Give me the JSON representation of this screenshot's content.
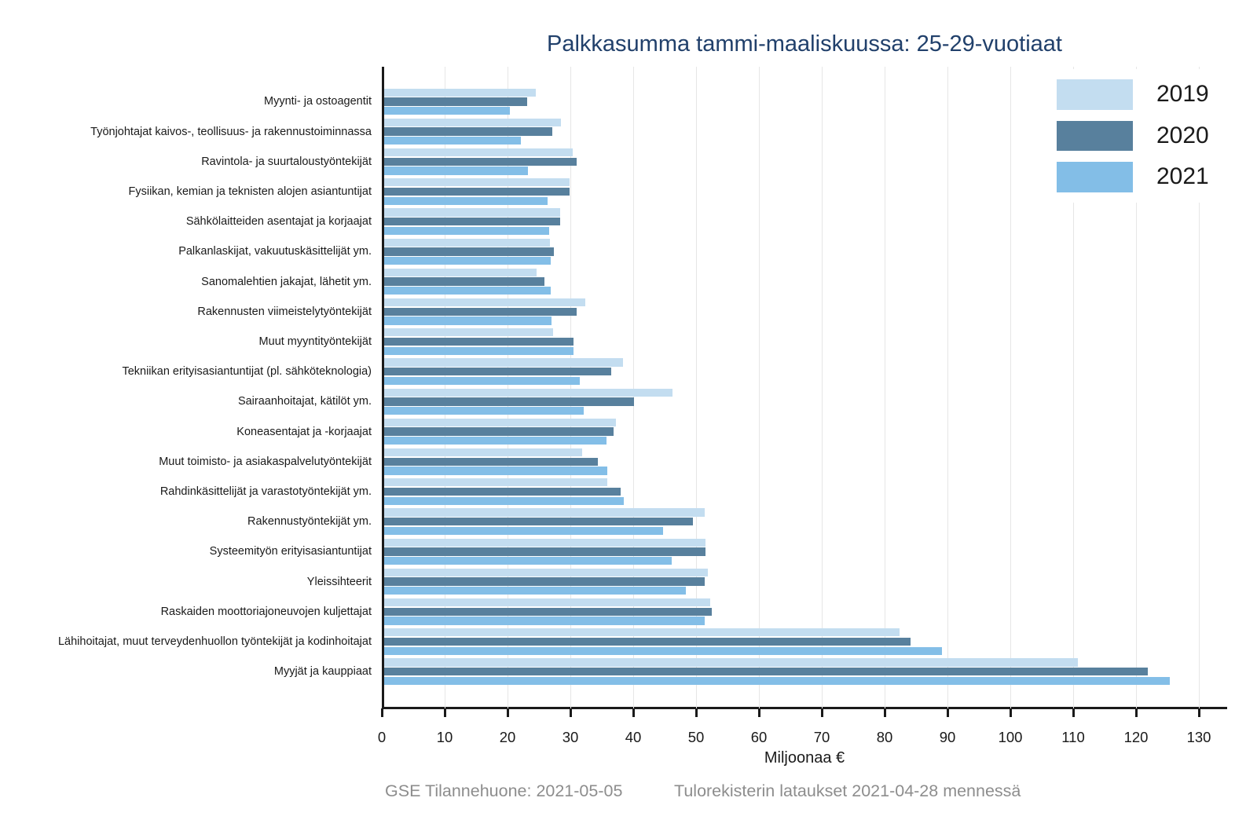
{
  "title": "Palkkasumma tammi-maaliskuussa: 25-29-vuotiaat",
  "footer": {
    "left": "GSE Tilannehuone: 2021-05-05",
    "right": "Tulorekisterin lataukset 2021-04-28 mennessä"
  },
  "colors": {
    "series_2019": "#c3ddf0",
    "series_2020": "#58809d",
    "series_2021": "#83bee7",
    "title_text": "#21406b",
    "axis": "#1a1a1a",
    "grid": "#e6e6e6",
    "footer_text": "#8d8d8d",
    "background": "#ffffff"
  },
  "chart_data": {
    "type": "bar",
    "orientation": "horizontal",
    "title": "Palkkasumma tammi-maaliskuussa: 25-29-vuotiaat",
    "xlabel": "Miljoonaa €",
    "ylabel": "",
    "xlim": [
      0,
      135
    ],
    "xticks": [
      0,
      10,
      20,
      30,
      40,
      50,
      60,
      70,
      80,
      90,
      100,
      110,
      120,
      130
    ],
    "grid": true,
    "legend_position": "top-right",
    "legend_entries": [
      "2019",
      "2020",
      "2021"
    ],
    "categories": [
      "Myynti- ja ostoagentit",
      "Työnjohtajat kaivos-, teollisuus- ja rakennustoiminnassa",
      "Ravintola- ja suurtaloustyöntekijät",
      "Fysiikan, kemian ja teknisten alojen asiantuntijat",
      "Sähkölaitteiden asentajat ja korjaajat",
      "Palkanlaskijat, vakuutuskäsittelijät ym.",
      "Sanomalehtien jakajat, lähetit ym.",
      "Rakennusten viimeistelytyöntekijät",
      "Muut myyntityöntekijät",
      "Tekniikan erityisasiantuntijat (pl. sähköteknologia)",
      "Sairaanhoitajat, kätilöt ym.",
      "Koneasentajat ja -korjaajat",
      "Muut toimisto- ja asiakaspalvelutyöntekijät",
      "Rahdinkäsittelijät ja varastotyöntekijät ym.",
      "Rakennustyöntekijät ym.",
      "Systeemityön erityisasiantuntijat",
      "Yleissihteerit",
      "Raskaiden moottoriajoneuvojen kuljettajat",
      "Lähihoitajat, muut terveydenhuollon työntekijät ja kodinhoitajat",
      "Myyjät ja kauppiaat"
    ],
    "series": [
      {
        "name": "2019",
        "color": "#c3ddf0",
        "values": [
          24.2,
          28.2,
          30.0,
          29.6,
          28.1,
          26.4,
          24.3,
          32.0,
          26.9,
          38.1,
          45.9,
          36.9,
          31.6,
          35.6,
          51.1,
          51.2,
          51.5,
          51.9,
          82.0,
          110.4
        ]
      },
      {
        "name": "2020",
        "color": "#58809d",
        "values": [
          22.8,
          26.8,
          30.7,
          29.5,
          28.0,
          27.0,
          25.6,
          30.7,
          30.2,
          36.2,
          39.8,
          36.6,
          34.0,
          37.7,
          49.2,
          51.2,
          51.1,
          52.2,
          83.8,
          121.5
        ]
      },
      {
        "name": "2021",
        "color": "#83bee7",
        "values": [
          20.1,
          21.8,
          22.9,
          26.0,
          26.3,
          26.5,
          26.6,
          26.7,
          30.2,
          31.2,
          31.8,
          35.4,
          35.6,
          38.2,
          44.4,
          45.8,
          48.0,
          51.0,
          88.8,
          125.1
        ]
      }
    ]
  }
}
